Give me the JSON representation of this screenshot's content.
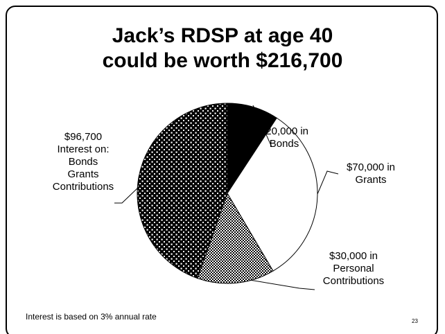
{
  "slide": {
    "title_lines": [
      "Jack’s RDSP at age 40",
      "could be worth $216,700"
    ],
    "footnote": "Interest is based on 3% annual rate",
    "page_number": "23"
  },
  "chart_data": {
    "type": "pie",
    "title": "Jack’s RDSP at age 40 could be worth $216,700",
    "categories": [
      "Bonds",
      "Grants",
      "Personal Contributions",
      "Interest on: Bonds Grants Contributions"
    ],
    "values": [
      20000,
      70000,
      30000,
      96700
    ],
    "total": 216700,
    "slices": [
      {
        "category": "Bonds",
        "value": 20000,
        "label_lines": [
          "$20,000 in",
          "Bonds"
        ],
        "fill": "solid",
        "color": "#000000"
      },
      {
        "category": "Grants",
        "value": 70000,
        "label_lines": [
          "$70,000 in",
          "Grants"
        ],
        "fill": "none",
        "color": "#ffffff"
      },
      {
        "category": "Personal Contributions",
        "value": 30000,
        "label_lines": [
          "$30,000 in",
          "Personal",
          "Contributions"
        ],
        "fill": "checkered",
        "color": "#000000"
      },
      {
        "category": "Interest on: Bonds Grants Contributions",
        "value": 96700,
        "label_lines": [
          "$96,700",
          "Interest on:",
          "Bonds",
          "Grants",
          "Contributions"
        ],
        "fill": "dotted",
        "color": "#000000"
      }
    ],
    "start_angle": "12 o'clock",
    "direction": "clockwise",
    "legend": "none"
  }
}
